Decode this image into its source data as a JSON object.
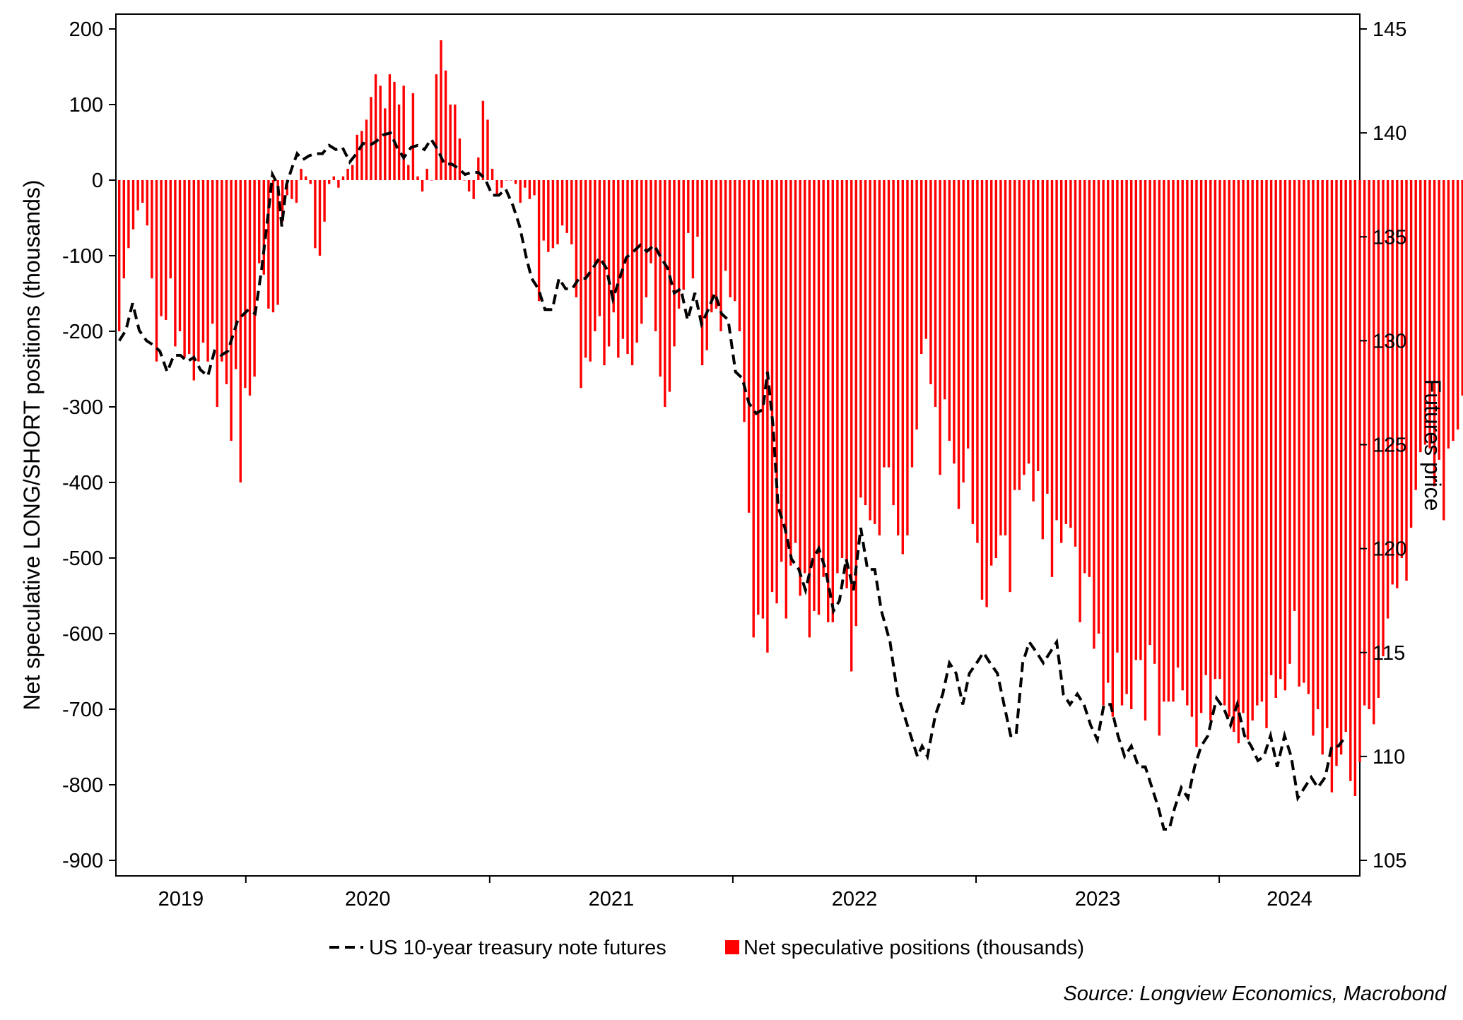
{
  "chart_data": {
    "type": "bar",
    "title": "",
    "y_left": {
      "label": "Net speculative LONG/SHORT positions (thousands)",
      "ylim": [
        -900,
        200
      ],
      "ticks": [
        200,
        100,
        0,
        -100,
        -200,
        -300,
        -400,
        -500,
        -600,
        -700,
        -800,
        -900
      ]
    },
    "y_right": {
      "label": "Futures price",
      "ylim": [
        105,
        145
      ],
      "ticks": [
        145,
        140,
        135,
        130,
        125,
        120,
        115,
        110,
        105
      ]
    },
    "x_axis": {
      "ticks": [
        "2019",
        "2020",
        "2021",
        "2022",
        "2023",
        "2024"
      ],
      "range": [
        "2019-06-20",
        "2024-07-30"
      ],
      "year_boundaries": [
        "2020-01-01",
        "2021-01-01",
        "2022-01-01",
        "2023-01-01",
        "2024-01-01"
      ]
    },
    "legend": {
      "placement": "bottom-center",
      "entries": [
        "US 10-year treasury note futures",
        "Net speculative positions (thousands)"
      ]
    },
    "source": "Source: Longview Economics, Macrobond",
    "colors": {
      "bars": "#ff0000",
      "line": "#000000"
    },
    "bar_series": {
      "name": "Net speculative positions (thousands)",
      "start": "2019-06-25",
      "step_days": 7,
      "values": [
        -200,
        -130,
        -90,
        -65,
        -40,
        -30,
        -60,
        -130,
        -240,
        -180,
        -185,
        -130,
        -220,
        -200,
        -235,
        -230,
        -265,
        -240,
        -215,
        -240,
        -190,
        -300,
        -240,
        -270,
        -345,
        -250,
        -400,
        -275,
        -285,
        -260,
        -110,
        -125,
        -170,
        -175,
        -165,
        -55,
        -20,
        -25,
        -30,
        15,
        5,
        -5,
        -90,
        -100,
        -55,
        -5,
        5,
        -10,
        5,
        15,
        20,
        60,
        65,
        80,
        110,
        140,
        125,
        95,
        140,
        130,
        100,
        125,
        20,
        115,
        5,
        -15,
        15,
        0,
        140,
        185,
        145,
        100,
        100,
        55,
        0,
        -15,
        -25,
        30,
        105,
        80,
        15,
        -20,
        -10,
        0,
        0,
        -5,
        -30,
        -10,
        -25,
        -20,
        -160,
        -80,
        -95,
        -90,
        -85,
        -60,
        -70,
        -85,
        -155,
        -275,
        -235,
        -240,
        -200,
        -180,
        -245,
        -220,
        -175,
        -235,
        -210,
        -230,
        -245,
        -215,
        -190,
        -155,
        -110,
        -200,
        -260,
        -300,
        -280,
        -220,
        -170,
        -145,
        -70,
        -130,
        -75,
        -245,
        -225,
        -175,
        -170,
        -200,
        -120,
        -155,
        -160,
        -200,
        -320,
        -440,
        -605,
        -575,
        -580,
        -625,
        -545,
        -560,
        -505,
        -580,
        -510,
        -480,
        -550,
        -520,
        -605,
        -570,
        -575,
        -525,
        -585,
        -585,
        -520,
        -500,
        -540,
        -650,
        -590,
        -420,
        -430,
        -450,
        -455,
        -470,
        -380,
        -380,
        -430,
        -470,
        -495,
        -470,
        -380,
        -330,
        -230,
        -210,
        -270,
        -300,
        -390,
        -290,
        -345,
        -375,
        -435,
        -400,
        -355,
        -455,
        -480,
        -555,
        -565,
        -510,
        -500,
        -470,
        -470,
        -545,
        -410,
        -410,
        -390,
        -375,
        -425,
        -385,
        -475,
        -415,
        -525,
        -450,
        -480,
        -455,
        -460,
        -485,
        -585,
        -520,
        -525,
        -620,
        -600,
        -695,
        -665,
        -710,
        -625,
        -695,
        -680,
        -700,
        -635,
        -635,
        -715,
        -615,
        -640,
        -735,
        -690,
        -690,
        -690,
        -645,
        -675,
        -695,
        -710,
        -750,
        -705,
        -655,
        -715,
        -660,
        -660,
        -695,
        -710,
        -730,
        -745,
        -705,
        -740,
        -715,
        -695,
        -690,
        -725,
        -655,
        -685,
        -660,
        -675,
        -640,
        -570,
        -670,
        -665,
        -680,
        -735,
        -700,
        -760,
        -725,
        -810,
        -775,
        -760,
        -730,
        -795,
        -815,
        -770,
        -695,
        -700,
        -720,
        -685,
        -630,
        -580,
        -535,
        -540,
        -500,
        -530,
        -460,
        -410,
        -360,
        -350,
        -355,
        -405,
        -370,
        -450,
        -355,
        -345,
        -330,
        -285,
        -280
      ]
    },
    "line_series": {
      "name": "US 10-year treasury note futures",
      "points": [
        [
          "2019-06-25",
          130.0
        ],
        [
          "2019-07-05",
          130.5
        ],
        [
          "2019-07-15",
          131.8
        ],
        [
          "2019-07-25",
          130.5
        ],
        [
          "2019-08-05",
          130.0
        ],
        [
          "2019-08-15",
          129.8
        ],
        [
          "2019-08-25",
          129.5
        ],
        [
          "2019-09-05",
          128.5
        ],
        [
          "2019-09-15",
          129.3
        ],
        [
          "2019-09-25",
          129.3
        ],
        [
          "2019-10-05",
          129.0
        ],
        [
          "2019-10-15",
          129.2
        ],
        [
          "2019-10-25",
          128.6
        ],
        [
          "2019-11-05",
          128.3
        ],
        [
          "2019-11-15",
          129.5
        ],
        [
          "2019-11-25",
          129.3
        ],
        [
          "2019-12-05",
          129.5
        ],
        [
          "2019-12-20",
          131.0
        ],
        [
          "2020-01-05",
          131.5
        ],
        [
          "2020-01-15",
          131.3
        ],
        [
          "2020-01-25",
          133.5
        ],
        [
          "2020-02-05",
          136.5
        ],
        [
          "2020-02-10",
          138.0
        ],
        [
          "2020-02-18",
          137.5
        ],
        [
          "2020-02-24",
          135.5
        ],
        [
          "2020-03-02",
          137.5
        ],
        [
          "2020-03-10",
          138.3
        ],
        [
          "2020-03-18",
          139.0
        ],
        [
          "2020-03-26",
          138.7
        ],
        [
          "2020-04-05",
          138.9
        ],
        [
          "2020-04-15",
          139.0
        ],
        [
          "2020-04-25",
          139.0
        ],
        [
          "2020-05-05",
          139.4
        ],
        [
          "2020-05-15",
          139.2
        ],
        [
          "2020-05-25",
          139.3
        ],
        [
          "2020-06-05",
          138.6
        ],
        [
          "2020-06-15",
          139.0
        ],
        [
          "2020-06-25",
          139.5
        ],
        [
          "2020-07-05",
          139.4
        ],
        [
          "2020-07-15",
          139.6
        ],
        [
          "2020-07-25",
          139.9
        ],
        [
          "2020-08-05",
          140.0
        ],
        [
          "2020-08-15",
          139.3
        ],
        [
          "2020-08-25",
          138.8
        ],
        [
          "2020-09-05",
          139.3
        ],
        [
          "2020-09-15",
          139.4
        ],
        [
          "2020-09-25",
          139.2
        ],
        [
          "2020-10-05",
          139.7
        ],
        [
          "2020-10-15",
          139.2
        ],
        [
          "2020-10-25",
          138.5
        ],
        [
          "2020-11-05",
          138.5
        ],
        [
          "2020-11-15",
          138.3
        ],
        [
          "2020-11-25",
          138.0
        ],
        [
          "2020-12-05",
          138.1
        ],
        [
          "2020-12-15",
          138.1
        ],
        [
          "2020-12-25",
          137.8
        ],
        [
          "2021-01-05",
          137.0
        ],
        [
          "2021-01-15",
          137.0
        ],
        [
          "2021-01-25",
          137.3
        ],
        [
          "2021-02-05",
          136.5
        ],
        [
          "2021-02-15",
          135.5
        ],
        [
          "2021-02-25",
          134.0
        ],
        [
          "2021-03-05",
          133.0
        ],
        [
          "2021-03-15",
          132.5
        ],
        [
          "2021-03-25",
          131.5
        ],
        [
          "2021-04-05",
          131.5
        ],
        [
          "2021-04-15",
          133.0
        ],
        [
          "2021-04-25",
          132.5
        ],
        [
          "2021-05-05",
          132.5
        ],
        [
          "2021-05-15",
          133.0
        ],
        [
          "2021-05-25",
          133.0
        ],
        [
          "2021-06-05",
          133.5
        ],
        [
          "2021-06-15",
          134.0
        ],
        [
          "2021-06-25",
          133.5
        ],
        [
          "2021-07-05",
          132.0
        ],
        [
          "2021-07-15",
          133.0
        ],
        [
          "2021-07-25",
          134.0
        ],
        [
          "2021-08-05",
          134.3
        ],
        [
          "2021-08-15",
          134.6
        ],
        [
          "2021-08-25",
          134.3
        ],
        [
          "2021-09-05",
          134.6
        ],
        [
          "2021-09-15",
          134.0
        ],
        [
          "2021-09-25",
          133.5
        ],
        [
          "2021-10-05",
          132.3
        ],
        [
          "2021-10-15",
          132.5
        ],
        [
          "2021-10-25",
          131.0
        ],
        [
          "2021-11-05",
          132.3
        ],
        [
          "2021-11-15",
          130.8
        ],
        [
          "2021-11-25",
          131.5
        ],
        [
          "2021-12-05",
          132.3
        ],
        [
          "2021-12-15",
          131.3
        ],
        [
          "2021-12-25",
          131.0
        ],
        [
          "2022-01-05",
          128.5
        ],
        [
          "2022-01-15",
          128.2
        ],
        [
          "2022-01-25",
          127.0
        ],
        [
          "2022-02-05",
          126.5
        ],
        [
          "2022-02-15",
          126.7
        ],
        [
          "2022-02-22",
          128.5
        ],
        [
          "2022-03-02",
          126.0
        ],
        [
          "2022-03-10",
          122.0
        ],
        [
          "2022-03-20",
          121.0
        ],
        [
          "2022-03-30",
          119.5
        ],
        [
          "2022-04-10",
          119.0
        ],
        [
          "2022-04-20",
          118.0
        ],
        [
          "2022-05-01",
          119.5
        ],
        [
          "2022-05-10",
          120.0
        ],
        [
          "2022-05-20",
          119.0
        ],
        [
          "2022-06-01",
          117.0
        ],
        [
          "2022-06-10",
          117.5
        ],
        [
          "2022-06-20",
          119.5
        ],
        [
          "2022-07-01",
          118.0
        ],
        [
          "2022-07-12",
          121.0
        ],
        [
          "2022-07-22",
          119.0
        ],
        [
          "2022-08-02",
          119.0
        ],
        [
          "2022-08-12",
          117.0
        ],
        [
          "2022-08-25",
          115.5
        ],
        [
          "2022-09-05",
          113.0
        ],
        [
          "2022-09-15",
          112.0
        ],
        [
          "2022-09-25",
          111.0
        ],
        [
          "2022-10-05",
          110.0
        ],
        [
          "2022-10-12",
          110.5
        ],
        [
          "2022-10-20",
          110.0
        ],
        [
          "2022-11-01",
          112.0
        ],
        [
          "2022-11-12",
          113.0
        ],
        [
          "2022-11-22",
          114.5
        ],
        [
          "2022-12-02",
          114.0
        ],
        [
          "2022-12-12",
          112.5
        ],
        [
          "2022-12-22",
          114.0
        ],
        [
          "2023-01-02",
          114.5
        ],
        [
          "2023-01-12",
          115.0
        ],
        [
          "2023-01-22",
          114.5
        ],
        [
          "2023-02-02",
          114.0
        ],
        [
          "2023-02-12",
          112.5
        ],
        [
          "2023-02-22",
          111.0
        ],
        [
          "2023-03-02",
          111.0
        ],
        [
          "2023-03-12",
          114.5
        ],
        [
          "2023-03-22",
          115.5
        ],
        [
          "2023-04-02",
          115.0
        ],
        [
          "2023-04-12",
          114.5
        ],
        [
          "2023-04-22",
          115.0
        ],
        [
          "2023-05-02",
          115.5
        ],
        [
          "2023-05-12",
          113.0
        ],
        [
          "2023-05-22",
          112.5
        ],
        [
          "2023-06-02",
          113.0
        ],
        [
          "2023-06-12",
          112.5
        ],
        [
          "2023-06-22",
          111.5
        ],
        [
          "2023-07-02",
          110.8
        ],
        [
          "2023-07-12",
          112.5
        ],
        [
          "2023-07-22",
          112.5
        ],
        [
          "2023-08-02",
          111.0
        ],
        [
          "2023-08-12",
          110.0
        ],
        [
          "2023-08-22",
          110.5
        ],
        [
          "2023-09-02",
          109.5
        ],
        [
          "2023-09-12",
          109.5
        ],
        [
          "2023-09-22",
          108.5
        ],
        [
          "2023-10-02",
          107.5
        ],
        [
          "2023-10-10",
          106.5
        ],
        [
          "2023-10-18",
          106.5
        ],
        [
          "2023-10-26",
          107.5
        ],
        [
          "2023-11-05",
          108.5
        ],
        [
          "2023-11-15",
          108.0
        ],
        [
          "2023-11-25",
          109.5
        ],
        [
          "2023-12-05",
          110.5
        ],
        [
          "2023-12-15",
          111.0
        ],
        [
          "2023-12-28",
          112.8
        ],
        [
          "2024-01-08",
          112.3
        ],
        [
          "2024-01-18",
          111.5
        ],
        [
          "2024-01-28",
          112.5
        ],
        [
          "2024-02-08",
          111.0
        ],
        [
          "2024-02-18",
          110.5
        ],
        [
          "2024-02-28",
          109.8
        ],
        [
          "2024-03-08",
          110.0
        ],
        [
          "2024-03-18",
          111.0
        ],
        [
          "2024-03-28",
          109.5
        ],
        [
          "2024-04-08",
          111.0
        ],
        [
          "2024-04-18",
          110.0
        ],
        [
          "2024-04-28",
          108.0
        ],
        [
          "2024-05-08",
          108.5
        ],
        [
          "2024-05-18",
          109.0
        ],
        [
          "2024-05-28",
          108.5
        ],
        [
          "2024-06-08",
          109.0
        ],
        [
          "2024-06-18",
          110.5
        ],
        [
          "2024-06-28",
          110.5
        ],
        [
          "2024-07-05",
          110.8
        ]
      ]
    }
  }
}
